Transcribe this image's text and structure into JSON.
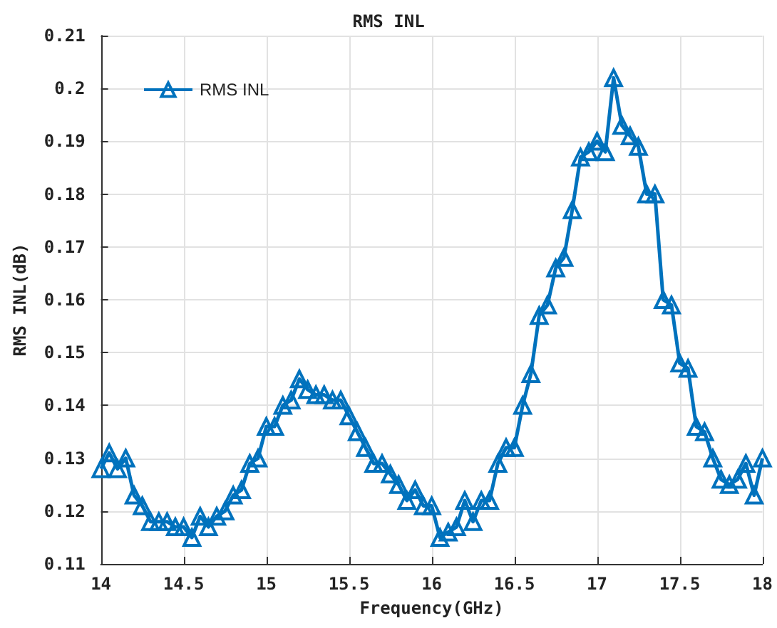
{
  "chart_data": {
    "type": "line",
    "title": "RMS INL",
    "xlabel": "Frequency(GHz)",
    "ylabel": "RMS INL(dB)",
    "x": [
      14.0,
      14.05,
      14.1,
      14.15,
      14.2,
      14.25,
      14.3,
      14.35,
      14.4,
      14.45,
      14.5,
      14.55,
      14.6,
      14.65,
      14.7,
      14.75,
      14.8,
      14.85,
      14.9,
      14.95,
      15.0,
      15.05,
      15.1,
      15.15,
      15.2,
      15.25,
      15.3,
      15.35,
      15.4,
      15.45,
      15.5,
      15.55,
      15.6,
      15.65,
      15.7,
      15.75,
      15.8,
      15.85,
      15.9,
      15.95,
      16.0,
      16.05,
      16.1,
      16.15,
      16.2,
      16.25,
      16.3,
      16.35,
      16.4,
      16.45,
      16.5,
      16.55,
      16.6,
      16.65,
      16.7,
      16.75,
      16.8,
      16.85,
      16.9,
      16.95,
      17.0,
      17.05,
      17.1,
      17.15,
      17.2,
      17.25,
      17.3,
      17.35,
      17.4,
      17.45,
      17.5,
      17.55,
      17.6,
      17.65,
      17.7,
      17.75,
      17.8,
      17.85,
      17.9,
      17.95,
      18.0
    ],
    "series": [
      {
        "name": "RMS INL",
        "color": "#0072bd",
        "values": [
          0.128,
          0.131,
          0.128,
          0.13,
          0.123,
          0.121,
          0.118,
          0.118,
          0.118,
          0.117,
          0.117,
          0.115,
          0.119,
          0.117,
          0.119,
          0.12,
          0.123,
          0.124,
          0.129,
          0.13,
          0.136,
          0.136,
          0.14,
          0.141,
          0.145,
          0.143,
          0.142,
          0.142,
          0.141,
          0.141,
          0.138,
          0.135,
          0.132,
          0.129,
          0.129,
          0.127,
          0.125,
          0.122,
          0.124,
          0.121,
          0.121,
          0.115,
          0.116,
          0.117,
          0.122,
          0.118,
          0.122,
          0.122,
          0.129,
          0.132,
          0.132,
          0.14,
          0.146,
          0.157,
          0.159,
          0.166,
          0.168,
          0.177,
          0.187,
          0.188,
          0.19,
          0.188,
          0.202,
          0.193,
          0.191,
          0.189,
          0.18,
          0.18,
          0.16,
          0.159,
          0.148,
          0.147,
          0.136,
          0.135,
          0.13,
          0.126,
          0.125,
          0.126,
          0.129,
          0.123,
          0.13
        ]
      }
    ],
    "xlim": [
      14,
      18
    ],
    "xticks": [
      14,
      14.5,
      15,
      15.5,
      16,
      16.5,
      17,
      17.5,
      18
    ],
    "ylim": [
      0.11,
      0.21
    ],
    "yticks": [
      0.11,
      0.12,
      0.13,
      0.14,
      0.15,
      0.16,
      0.17,
      0.18,
      0.19,
      0.2,
      0.21
    ],
    "grid": true,
    "legend": "top left",
    "marker": "triangle",
    "line_style": "solid"
  }
}
